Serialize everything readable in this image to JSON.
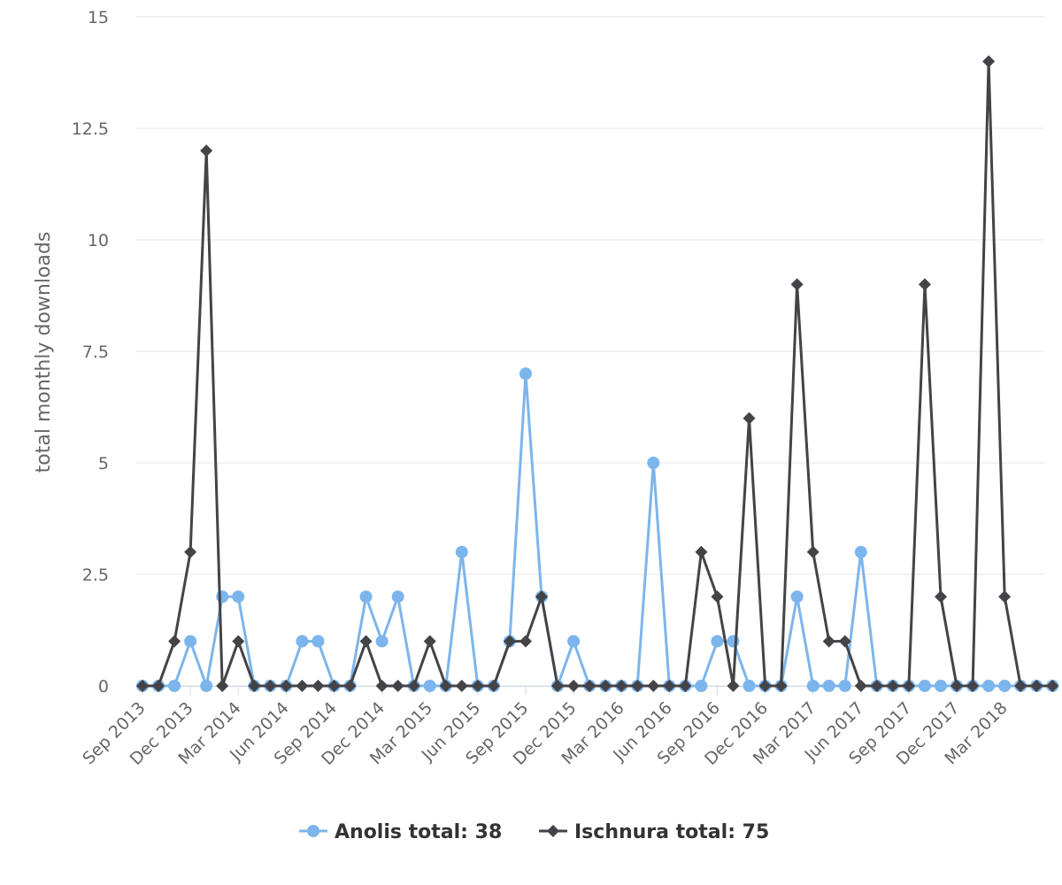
{
  "chart_data": {
    "type": "line",
    "ylabel": "total monthly downloads",
    "xlabel": "",
    "ylim": [
      0,
      15
    ],
    "yticks": [
      "0",
      "2.5",
      "5",
      "7.5",
      "10",
      "12.5",
      "15"
    ],
    "grid": true,
    "legend_position": "bottom",
    "x": [
      "Sep 2013",
      "Oct 2013",
      "Nov 2013",
      "Dec 2013",
      "Jan 2014",
      "Feb 2014",
      "Mar 2014",
      "Apr 2014",
      "May 2014",
      "Jun 2014",
      "Jul 2014",
      "Aug 2014",
      "Sep 2014",
      "Oct 2014",
      "Nov 2014",
      "Dec 2014",
      "Jan 2015",
      "Feb 2015",
      "Mar 2015",
      "Apr 2015",
      "May 2015",
      "Jun 2015",
      "Jul 2015",
      "Aug 2015",
      "Sep 2015",
      "Oct 2015",
      "Nov 2015",
      "Dec 2015",
      "Jan 2016",
      "Feb 2016",
      "Mar 2016",
      "Apr 2016",
      "May 2016",
      "Jun 2016",
      "Jul 2016",
      "Aug 2016",
      "Sep 2016",
      "Oct 2016",
      "Nov 2016",
      "Dec 2016",
      "Jan 2017",
      "Feb 2017",
      "Mar 2017",
      "Apr 2017",
      "May 2017",
      "Jun 2017",
      "Jul 2017",
      "Aug 2017",
      "Sep 2017",
      "Oct 2017",
      "Nov 2017",
      "Dec 2017",
      "Jan 2018",
      "Feb 2018",
      "Mar 2018",
      "Apr 2018",
      "May 2018",
      "Jun 2018"
    ],
    "xtick_labels": [
      "Sep 2013",
      "Dec 2013",
      "Mar 2014",
      "Jun 2014",
      "Sep 2014",
      "Dec 2014",
      "Mar 2015",
      "Jun 2015",
      "Sep 2015",
      "Dec 2015",
      "Mar 2016",
      "Jun 2016",
      "Sep 2016",
      "Dec 2016",
      "Mar 2017",
      "Jun 2017",
      "Sep 2017",
      "Dec 2017",
      "Mar 2018"
    ],
    "series": [
      {
        "name": "Anolis total: 38",
        "color": "#7cb5ec",
        "marker": "circle",
        "values": [
          0,
          0,
          0,
          1,
          0,
          2,
          2,
          0,
          0,
          0,
          1,
          1,
          0,
          0,
          2,
          1,
          2,
          0,
          0,
          0,
          3,
          0,
          0,
          1,
          7,
          2,
          0,
          1,
          0,
          0,
          0,
          0,
          5,
          0,
          0,
          0,
          1,
          1,
          0,
          0,
          0,
          2,
          0,
          0,
          0,
          3,
          0,
          0,
          0,
          0,
          0,
          0,
          0,
          0,
          0,
          0,
          0,
          0
        ]
      },
      {
        "name": "Ischnura total: 75",
        "color": "#434348",
        "marker": "diamond",
        "values": [
          0,
          0,
          1,
          3,
          12,
          0,
          1,
          0,
          0,
          0,
          0,
          0,
          0,
          0,
          1,
          0,
          0,
          0,
          1,
          0,
          0,
          0,
          0,
          1,
          1,
          2,
          0,
          0,
          0,
          0,
          0,
          0,
          0,
          0,
          0,
          3,
          2,
          0,
          6,
          0,
          0,
          9,
          3,
          1,
          1,
          0,
          0,
          0,
          0,
          9,
          2,
          0,
          0,
          14,
          2,
          0,
          0,
          0
        ]
      }
    ]
  }
}
